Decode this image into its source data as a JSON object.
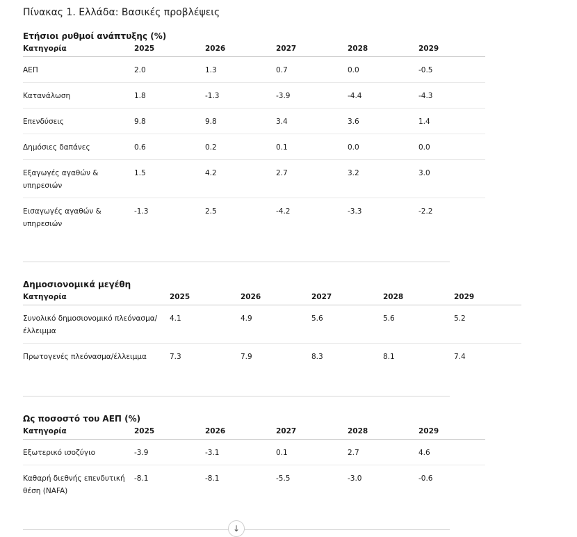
{
  "title": "Πίνακας 1. Ελλάδα: Βασικές προβλέψεις",
  "tables": [
    {
      "title": "Ετήσιοι ρυθμοί ανάπτυξης (%)",
      "headers": [
        "Κατηγορία",
        "2025",
        "2026",
        "2027",
        "2028",
        "2029"
      ],
      "rows": [
        [
          "ΑΕΠ",
          "2.0",
          "1.3",
          "0.7",
          "0.0",
          "-0.5"
        ],
        [
          "Κατανάλωση",
          "1.8",
          "-1.3",
          "-3.9",
          "-4.4",
          "-4.3"
        ],
        [
          "Επενδύσεις",
          "9.8",
          "9.8",
          "3.4",
          "3.6",
          "1.4"
        ],
        [
          "Δημόσιες δαπάνες",
          "0.6",
          "0.2",
          "0.1",
          "0.0",
          "0.0"
        ],
        [
          "Εξαγωγές αγαθών & υπηρεσιών",
          "1.5",
          "4.2",
          "2.7",
          "3.2",
          "3.0"
        ],
        [
          "Εισαγωγές αγαθών & υπηρεσιών",
          "-1.3",
          "2.5",
          "-4.2",
          "-3.3",
          "-2.2"
        ]
      ]
    },
    {
      "title": "Δημοσιονομικά μεγέθη",
      "headers": [
        "Κατηγορία",
        "2025",
        "2026",
        "2027",
        "2028",
        "2029"
      ],
      "rows": [
        [
          "Συνολικό δημοσιονομικό πλεόνασμα/έλλειμμα",
          "4.1",
          "4.9",
          "5.6",
          "5.6",
          "5.2"
        ],
        [
          "Πρωτογενές πλεόνασμα/έλλειμμα",
          "7.3",
          "7.9",
          "8.3",
          "8.1",
          "7.4"
        ]
      ]
    },
    {
      "title": "Ως ποσοστό του ΑΕΠ (%)",
      "headers": [
        "Κατηγορία",
        "2025",
        "2026",
        "2027",
        "2028",
        "2029"
      ],
      "rows": [
        [
          "Εξωτερικό ισοζύγιο",
          "-3.9",
          "-3.1",
          "0.1",
          "2.7",
          "4.6"
        ],
        [
          "Καθαρή διεθνής επενδυτική θέση (NAFA)",
          "-8.1",
          "-8.1",
          "-5.5",
          "-3.0",
          "-0.6"
        ]
      ]
    }
  ],
  "expand_icon": "arrow-down-icon"
}
